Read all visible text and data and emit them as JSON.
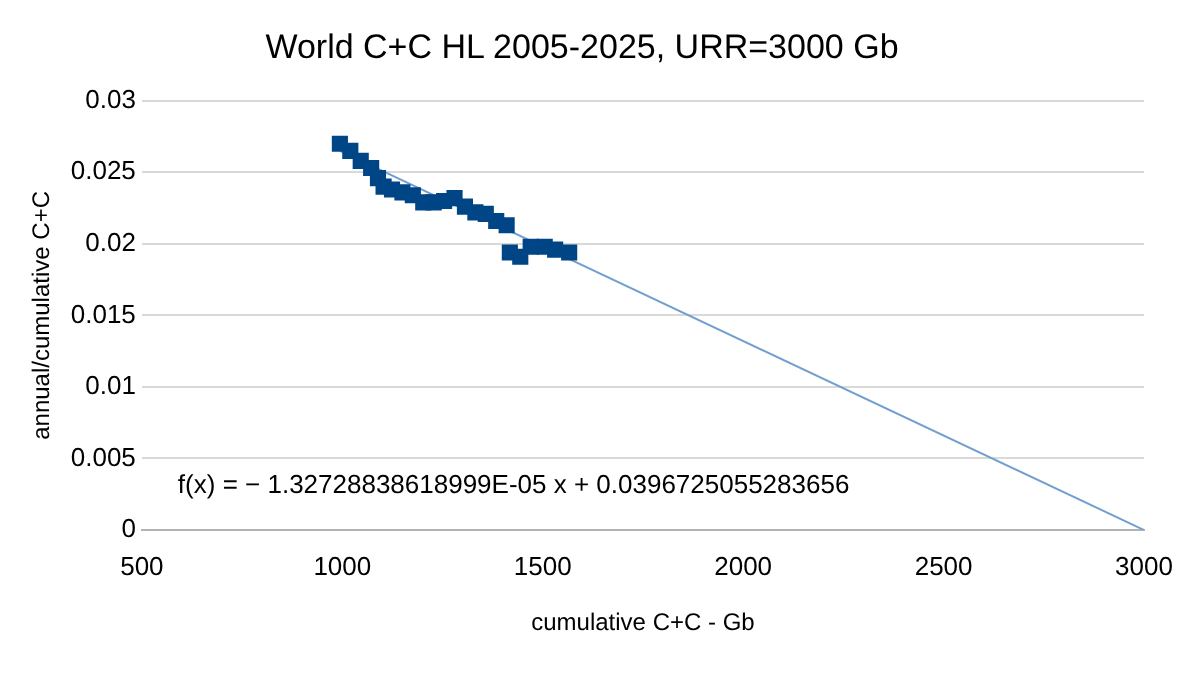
{
  "chart_data": {
    "type": "scatter",
    "title": "World C+C HL 2005-2025, URR=3000 Gb",
    "xlabel": "cumulative C+C - Gb",
    "ylabel": "annual/cumulative C+C",
    "series": [
      {
        "color": "#004586",
        "marker": "square",
        "x": [
          994,
          1020,
          1046,
          1072,
          1089,
          1103,
          1124,
          1150,
          1176,
          1202,
          1228,
          1254,
          1280,
          1306,
          1332,
          1358,
          1384,
          1410,
          1418,
          1444,
          1470,
          1505,
          1531,
          1566
        ],
        "values": [
          0.027,
          0.0265,
          0.0258,
          0.0253,
          0.0246,
          0.024,
          0.0238,
          0.0236,
          0.0234,
          0.0229,
          0.0229,
          0.023,
          0.0232,
          0.0226,
          0.0222,
          0.0221,
          0.0216,
          0.0213,
          0.0194,
          0.0191,
          0.0198,
          0.0198,
          0.0196,
          0.0194
        ]
      },
      {
        "type": "line",
        "color": "#729fcf",
        "marker": "none",
        "x": [
          994,
          3000
        ],
        "values": [
          0.0265,
          0
        ]
      }
    ],
    "xlim": [
      500,
      3000
    ],
    "xticks": [
      500,
      1000,
      1500,
      2000,
      2500,
      3000
    ],
    "ylim": [
      0,
      0.03
    ],
    "yticks": [
      0,
      0.005,
      0.01,
      0.015,
      0.02,
      0.025,
      0.03
    ],
    "grid": "y",
    "legend": false,
    "annotations": [
      "f(x) = − 1.32728838618999E-05 x + 0.0396725055283656"
    ]
  }
}
